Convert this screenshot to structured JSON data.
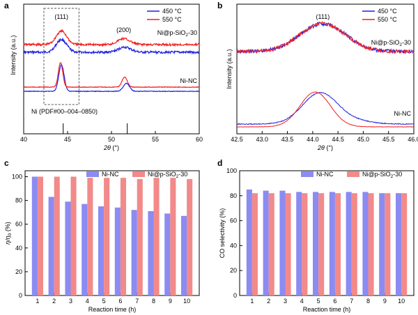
{
  "colors": {
    "blue": "#1f1fe0",
    "red": "#f21d1d",
    "bar_blue": "#8b8bf2",
    "bar_red": "#f28a8a",
    "box": "#555555"
  },
  "chart_data": [
    {
      "panel": "a",
      "type": "line",
      "xlabel": "2θ (°)",
      "ylabel": "Intensity (a.u.)",
      "xlim": [
        40,
        60
      ],
      "xticks": [
        40,
        45,
        50,
        55,
        60
      ],
      "tick_labels": [
        "40",
        "45",
        "50",
        "55",
        "60"
      ],
      "legend": [
        "450 °C",
        "550 °C"
      ],
      "legend_position": "top-right",
      "sample_labels": [
        "Ni@p-SiO2-30",
        "Ni-NC"
      ],
      "peak_labels": [
        "(111)",
        "(200)"
      ],
      "reference_label": "Ni (PDF#00–004–0850)",
      "reference_peaks": [
        44.5,
        51.8
      ],
      "highlight_box_x": [
        42.3,
        46.3
      ],
      "series": [
        {
          "sample": "Ni@p-SiO2-30",
          "temperature": "450 °C",
          "color": "blue",
          "peaks": [
            [
              44.3,
              0.75,
              0.6
            ],
            [
              51.5,
              0.3,
              0.7
            ]
          ],
          "baseline": 0.1
        },
        {
          "sample": "Ni@p-SiO2-30",
          "temperature": "550 °C",
          "color": "red",
          "peaks": [
            [
              44.3,
              0.8,
              0.6
            ],
            [
              51.4,
              0.35,
              0.7
            ]
          ],
          "baseline": 0.1
        },
        {
          "sample": "Ni-NC",
          "temperature": "450 °C",
          "color": "blue",
          "peaks": [
            [
              44.3,
              1.0,
              0.3
            ],
            [
              51.7,
              0.3,
              0.35
            ]
          ],
          "baseline": 0.0
        },
        {
          "sample": "Ni-NC",
          "temperature": "550 °C",
          "color": "red",
          "peaks": [
            [
              44.2,
              1.1,
              0.25
            ],
            [
              51.5,
              0.45,
              0.3
            ]
          ],
          "baseline": 0.0
        }
      ]
    },
    {
      "panel": "b",
      "type": "line",
      "xlabel": "2θ (°)",
      "ylabel": "Intensity (a.u.)",
      "xlim": [
        42.5,
        46.0
      ],
      "xticks": [
        42.5,
        43.0,
        43.5,
        44.0,
        44.5,
        45.0,
        45.5,
        46.0
      ],
      "tick_labels": [
        "42.5",
        "43.0",
        "43.5",
        "44.0",
        "44.5",
        "45.0",
        "45.5",
        "46.0"
      ],
      "legend": [
        "450 °C",
        "550 °C"
      ],
      "legend_position": "top-right",
      "sample_labels": [
        "Ni@p-SiO2-30",
        "Ni-NC"
      ],
      "peak_labels": [
        "(111)"
      ],
      "series": [
        {
          "sample": "Ni@p-SiO2-30",
          "temperature": "450 °C",
          "color": "blue",
          "center": 44.2,
          "height": 1.0,
          "width": 0.45
        },
        {
          "sample": "Ni@p-SiO2-30",
          "temperature": "550 °C",
          "color": "red",
          "center": 44.2,
          "height": 1.0,
          "width": 0.45
        },
        {
          "sample": "Ni-NC",
          "temperature": "450 °C",
          "color": "blue",
          "center": 44.15,
          "height": 1.0,
          "width": 0.35
        },
        {
          "sample": "Ni-NC",
          "temperature": "550 °C",
          "color": "red",
          "center": 44.05,
          "height": 1.0,
          "width": 0.3
        }
      ]
    },
    {
      "panel": "c",
      "type": "bar",
      "xlabel": "Reaction time (h)",
      "ylabel": "η/η0 (%)",
      "ylim": [
        0,
        105
      ],
      "yticks": [
        0,
        20,
        40,
        60,
        80,
        100
      ],
      "tick_labels": [
        "0",
        "20",
        "40",
        "60",
        "80",
        "100"
      ],
      "legend_position": "top-right",
      "categories": [
        "1",
        "2",
        "3",
        "4",
        "5",
        "6",
        "7",
        "8",
        "9",
        "10"
      ],
      "series": [
        {
          "name": "Ni-NC",
          "color": "bar_blue",
          "values": [
            100,
            83,
            79,
            77,
            75,
            74,
            72,
            71,
            69,
            67
          ]
        },
        {
          "name": "Ni@p-SiO2-30",
          "color": "bar_red",
          "values": [
            100,
            100,
            100,
            99,
            99,
            99,
            98,
            99,
            99,
            98
          ]
        }
      ]
    },
    {
      "panel": "d",
      "type": "bar",
      "xlabel": "Reaction time (h)",
      "ylabel": "CO selectivity (%)",
      "ylim": [
        0,
        100
      ],
      "yticks": [
        0,
        20,
        40,
        60,
        80,
        100
      ],
      "tick_labels": [
        "0",
        "20",
        "40",
        "60",
        "80",
        "100"
      ],
      "legend_position": "top-right",
      "categories": [
        "1",
        "2",
        "3",
        "4",
        "5",
        "6",
        "7",
        "8",
        "9",
        "10"
      ],
      "series": [
        {
          "name": "Ni-NC",
          "color": "bar_blue",
          "values": [
            85,
            84,
            84,
            83,
            83,
            83,
            83,
            83,
            82,
            82
          ]
        },
        {
          "name": "Ni@p-SiO2-30",
          "color": "bar_red",
          "values": [
            82,
            82,
            82,
            82,
            82,
            82,
            82,
            82,
            82,
            82
          ]
        }
      ]
    }
  ]
}
